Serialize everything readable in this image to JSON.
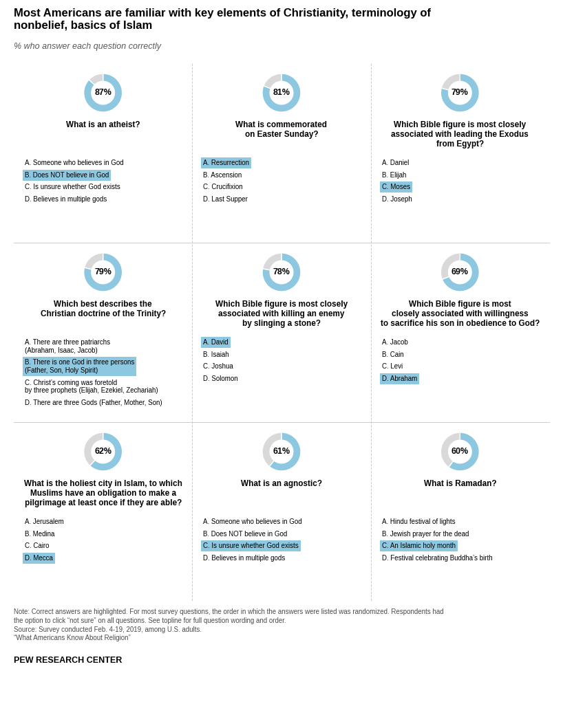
{
  "title": "Most Americans are familiar with key elements of Christianity, terminology of\nnonbelief, basics of Islam",
  "subtitle": "% who answer each question correctly",
  "annotations": [
    "Note: Correct answers are highlighted. For most survey questions, the order in which the answers were listed was randomized. Respondents had\nthe option to click “not sure” on all questions. See topline for full question wording and order.\nSource: Survey conducted Feb. 4-19, 2019, among U.S. adults.\n“What Americans Know About Religion”",
    "PEW RESEARCH CENTER"
  ],
  "chart_data": [
    {
      "type": "pie",
      "title": "What is an atheist?",
      "values": [
        87,
        13
      ],
      "value_labels": [
        "87%",
        null
      ],
      "colors": [
        "#8dc8e0",
        "#d9d9d9"
      ],
      "annotations": [
        {
          "text": "A. Someone who believes in God"
        },
        {
          "text": "B. Does NOT believe in God",
          "color": "#8dc8e0"
        },
        {
          "text": "C. Is unsure whether God exists"
        },
        {
          "text": "D. Believes in multiple gods"
        }
      ]
    },
    {
      "type": "pie",
      "title": "What is commemorated\non Easter Sunday?",
      "values": [
        81,
        19
      ],
      "value_labels": [
        "81%",
        null
      ],
      "colors": [
        "#8dc8e0",
        "#d9d9d9"
      ],
      "annotations": [
        {
          "text": "A. Resurrection",
          "color": "#8dc8e0"
        },
        {
          "text": "B. Ascension"
        },
        {
          "text": "C. Crucifixion"
        },
        {
          "text": "D. Last Supper"
        }
      ]
    },
    {
      "type": "pie",
      "title": "Which Bible figure is most closely\nassociated with leading the Exodus\nfrom Egypt?",
      "values": [
        79,
        21
      ],
      "value_labels": [
        "79%",
        null
      ],
      "colors": [
        "#8dc8e0",
        "#d9d9d9"
      ],
      "annotations": [
        {
          "text": "A. Daniel"
        },
        {
          "text": "B. Elijah"
        },
        {
          "text": "C. Moses",
          "color": "#8dc8e0"
        },
        {
          "text": "D. Joseph"
        }
      ]
    },
    {
      "type": "pie",
      "title": "Which best describes the\nChristian doctrine of the Trinity?",
      "values": [
        79,
        21
      ],
      "value_labels": [
        "79%",
        null
      ],
      "colors": [
        "#8dc8e0",
        "#d9d9d9"
      ],
      "annotations": [
        {
          "text": "A. There are three patriarchs\n(Abraham, Isaac, Jacob)"
        },
        {
          "text": "B. There is one God in three persons\n(Father, Son, Holy Spirit)",
          "color": "#8dc8e0"
        },
        {
          "text": "C. Christ’s coming was foretold\nby three prophets (Elijah, Ezekiel, Zechariah)"
        },
        {
          "text": "D. There are three Gods (Father, Mother, Son)"
        }
      ]
    },
    {
      "type": "pie",
      "title": "Which Bible figure is most closely\nassociated with killing an enemy\nby slinging a stone?",
      "values": [
        78,
        22
      ],
      "value_labels": [
        "78%",
        null
      ],
      "colors": [
        "#8dc8e0",
        "#d9d9d9"
      ],
      "annotations": [
        {
          "text": "A. David",
          "color": "#8dc8e0"
        },
        {
          "text": "B. Isaiah"
        },
        {
          "text": "C. Joshua"
        },
        {
          "text": "D. Solomon"
        }
      ]
    },
    {
      "type": "pie",
      "title": "Which Bible figure is most\nclosely associated with willingness\nto sacrifice his son in obedience to God?",
      "values": [
        69,
        31
      ],
      "value_labels": [
        "69%",
        null
      ],
      "colors": [
        "#8dc8e0",
        "#d9d9d9"
      ],
      "annotations": [
        {
          "text": "A. Jacob"
        },
        {
          "text": "B. Cain"
        },
        {
          "text": "C. Levi"
        },
        {
          "text": "D. Abraham",
          "color": "#8dc8e0"
        }
      ]
    },
    {
      "type": "pie",
      "title": "What is the holiest city in Islam, to which\nMuslims have an obligation to make a\npilgrimage at least once if they are able?",
      "values": [
        62,
        38
      ],
      "value_labels": [
        "62%",
        null
      ],
      "colors": [
        "#8dc8e0",
        "#d9d9d9"
      ],
      "annotations": [
        {
          "text": "A. Jerusalem"
        },
        {
          "text": "B. Medina"
        },
        {
          "text": "C. Cairo"
        },
        {
          "text": "D. Mecca",
          "color": "#8dc8e0"
        }
      ]
    },
    {
      "type": "pie",
      "title": "What is an agnostic?",
      "values": [
        61,
        39
      ],
      "value_labels": [
        "61%",
        null
      ],
      "colors": [
        "#8dc8e0",
        "#d9d9d9"
      ],
      "annotations": [
        {
          "text": "A. Someone who believes in God"
        },
        {
          "text": "B. Does NOT believe in God"
        },
        {
          "text": "C. Is unsure whether God exists",
          "color": "#8dc8e0"
        },
        {
          "text": "D. Believes in multiple gods"
        }
      ]
    },
    {
      "type": "pie",
      "title": "What is Ramadan?",
      "values": [
        60,
        40
      ],
      "value_labels": [
        "60%",
        null
      ],
      "colors": [
        "#8dc8e0",
        "#d9d9d9"
      ],
      "annotations": [
        {
          "text": "A. Hindu festival of lights"
        },
        {
          "text": "B. Jewish prayer for the dead"
        },
        {
          "text": "C. An Islamic holy month",
          "color": "#8dc8e0"
        },
        {
          "text": "D. Festival celebrating Buddha’s birth"
        }
      ]
    }
  ]
}
